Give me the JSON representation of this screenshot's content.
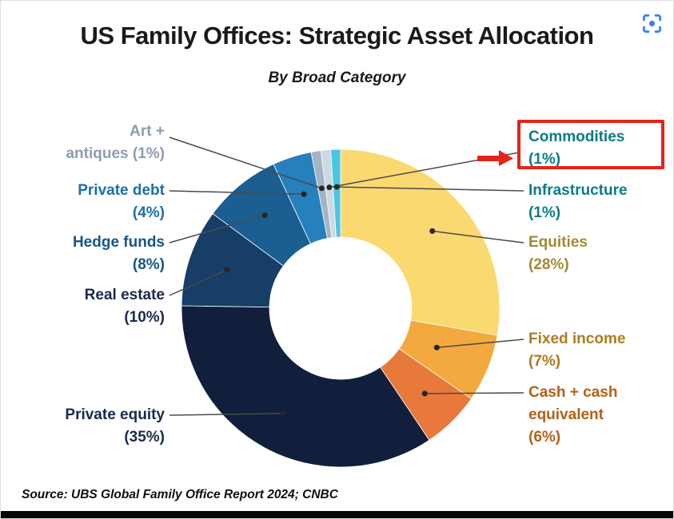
{
  "page": {
    "title": "US Family Offices: Strategic Asset Allocation",
    "subtitle": "By Broad Category",
    "source": "Source: UBS Global Family Office Report 2024; CNBC"
  },
  "icons": {
    "screenshot": "screenshot-region-icon",
    "arrow": "red-arrow-right-icon"
  },
  "highlight": {
    "color": "#e3241b",
    "target": "Commodities",
    "target_value": "(1%)"
  },
  "chart_data": {
    "type": "pie",
    "style": "donut",
    "title": "US Family Offices: Strategic Asset Allocation",
    "subtitle": "By Broad Category",
    "unit": "%",
    "legend_position": "around",
    "highlighted_slice": "Commodities",
    "slices": [
      {
        "name": "Equities",
        "value": 28,
        "color": "#FBD971",
        "text_color": "#A28A33"
      },
      {
        "name": "Fixed income",
        "value": 7,
        "color": "#F4A93E",
        "text_color": "#AE7B22"
      },
      {
        "name": "Cash + cash equivalent",
        "value": 6,
        "color": "#E7793B",
        "text_color": "#B26218"
      },
      {
        "name": "Private equity",
        "value": 35,
        "color": "#111E3C",
        "text_color": "#1B2A4C"
      },
      {
        "name": "Real estate",
        "value": 10,
        "color": "#163E66",
        "text_color": "#1B2A4C"
      },
      {
        "name": "Hedge funds",
        "value": 8,
        "color": "#1A5E92",
        "text_color": "#14568C"
      },
      {
        "name": "Private debt",
        "value": 4,
        "color": "#2680BC",
        "text_color": "#1B6FAE"
      },
      {
        "name": "Art + antiques",
        "value": 1,
        "color": "#A2B5C7",
        "text_color": "#8C9CB3"
      },
      {
        "name": "Commodities",
        "value": 1,
        "color": "#CCD9E3",
        "text_color": "#0C7B86"
      },
      {
        "name": "Infrastructure",
        "value": 1,
        "color": "#49C6E3",
        "text_color": "#0C7B86"
      }
    ]
  }
}
